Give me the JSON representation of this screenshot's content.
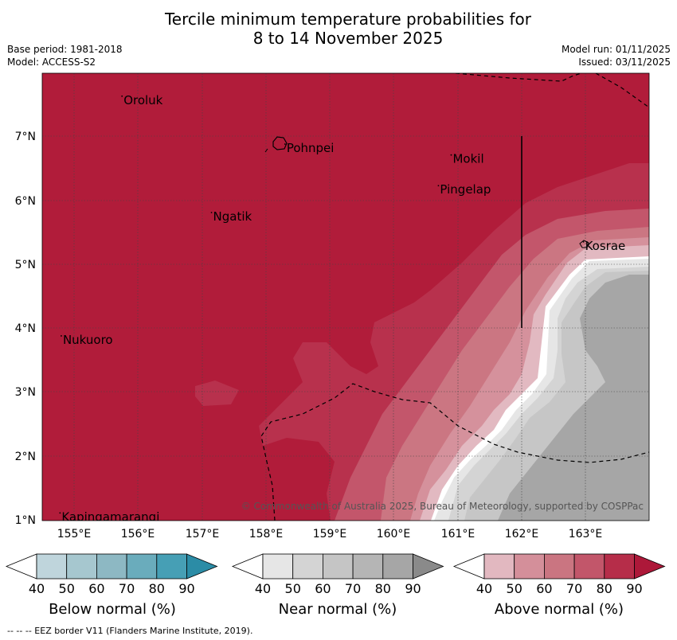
{
  "title_line1": "Tercile minimum temperature probabilities for",
  "title_line2": "8 to 14 November 2025",
  "base_period": "Base period: 1981-2018",
  "model": "Model: ACCESS-S2",
  "model_run": "Model run: 01/11/2025",
  "issued": "Issued: 03/11/2025",
  "copyright": "© Commonwealth of Australia 2025, Bureau of Meteorology, supported by COSPPac",
  "lon_ticks": [
    "155°E",
    "156°E",
    "157°E",
    "158°E",
    "159°E",
    "160°E",
    "161°E",
    "162°E",
    "163°E"
  ],
  "lat_ticks": [
    "7°N",
    "6°N",
    "5°N",
    "4°N",
    "3°N",
    "2°N",
    "1°N"
  ],
  "places": [
    {
      "name": "Oroluk",
      "lon": 155.75,
      "lat": 7.6
    },
    {
      "name": "Pohnpei",
      "lon": 158.3,
      "lat": 6.85
    },
    {
      "name": "Mokil",
      "lon": 160.9,
      "lat": 6.68
    },
    {
      "name": "Pingelap",
      "lon": 160.7,
      "lat": 6.2
    },
    {
      "name": "Ngatik",
      "lon": 157.15,
      "lat": 5.78
    },
    {
      "name": "Kosrae",
      "lon": 162.97,
      "lat": 5.32
    },
    {
      "name": "Nukuoro",
      "lon": 154.8,
      "lat": 3.85
    },
    {
      "name": "Kapingamarangi",
      "lon": 154.78,
      "lat": 1.08
    }
  ],
  "colorbars": [
    {
      "label": "Below normal (%)",
      "colors": [
        "#ffffff",
        "#bfd5dc",
        "#a6c7cf",
        "#8db8c3",
        "#6aacbc",
        "#469fb5",
        "#2b8ca6"
      ]
    },
    {
      "label": "Near normal (%)",
      "colors": [
        "#ffffff",
        "#e6e6e6",
        "#d4d4d4",
        "#c5c5c5",
        "#b5b5b5",
        "#a6a6a6",
        "#8a8a8a"
      ]
    },
    {
      "label": "Above normal (%)",
      "colors": [
        "#ffffff",
        "#e2b8c0",
        "#d48f9a",
        "#ca7581",
        "#c2566a",
        "#b62d49",
        "#ad1839"
      ]
    }
  ],
  "colorbar_ticks": [
    "40",
    "50",
    "60",
    "70",
    "80",
    "90"
  ],
  "footer": "--  --  -- EEZ border V11 (Flanders Marine Institute, 2019)."
}
